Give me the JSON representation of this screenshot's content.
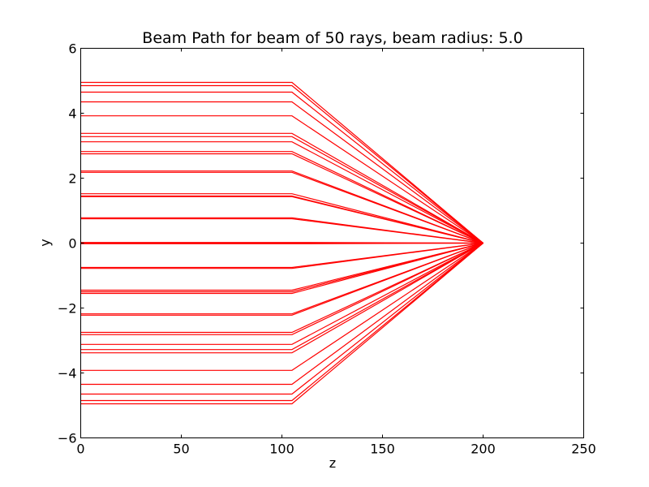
{
  "chart_data": {
    "type": "line",
    "title": "Beam Path for beam of 50 rays, beam radius: 5.0",
    "xlabel": "z",
    "ylabel": "y",
    "xlim": [
      0,
      250
    ],
    "ylim": [
      -6,
      6
    ],
    "xticks": [
      0,
      50,
      100,
      150,
      200,
      250
    ],
    "yticks": [
      -6,
      -4,
      -2,
      0,
      2,
      4,
      6
    ],
    "xtick_labels": [
      "0",
      "50",
      "100",
      "150",
      "200",
      "250"
    ],
    "ytick_labels": [
      "−6",
      "−4",
      "−2",
      "0",
      "2",
      "4",
      "6"
    ],
    "grid": false,
    "legend": "none",
    "series_color": "#ff0000",
    "lens_z": 105,
    "focus_z": 200,
    "focus_y": 0,
    "ray_heights": [
      4.95,
      4.85,
      4.65,
      4.35,
      3.92,
      3.38,
      3.28,
      3.12,
      2.82,
      2.75,
      2.22,
      2.18,
      1.52,
      1.45,
      1.43,
      0.78,
      0.75,
      0.02,
      0.0,
      -0.02,
      -0.75,
      -0.78,
      -1.45,
      -1.5,
      -1.55,
      -2.18,
      -2.22,
      -2.75,
      -2.82,
      -3.12,
      -3.28,
      -3.38,
      -3.92,
      -4.35,
      -4.65,
      -4.85,
      -4.95
    ]
  }
}
